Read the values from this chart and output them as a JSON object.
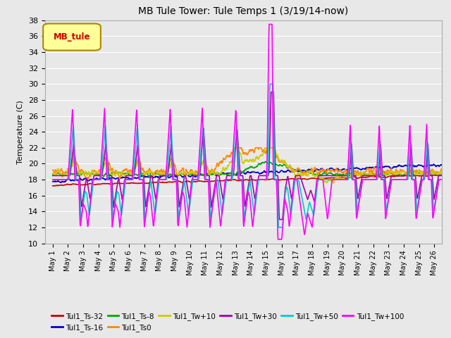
{
  "title": "MB Tule Tower: Tule Temps 1 (3/19/14-now)",
  "ylabel": "Temperature (C)",
  "ylim": [
    10,
    38
  ],
  "yticks": [
    10,
    12,
    14,
    16,
    18,
    20,
    22,
    24,
    26,
    28,
    30,
    32,
    34,
    36,
    38
  ],
  "background_color": "#e8e8e8",
  "series": {
    "Tul1_Ts-32": {
      "color": "#cc0000",
      "lw": 1.2
    },
    "Tul1_Ts-16": {
      "color": "#0000cc",
      "lw": 1.2
    },
    "Tul1_Ts-8": {
      "color": "#00aa00",
      "lw": 1.2
    },
    "Tul1_Ts0": {
      "color": "#ff8800",
      "lw": 1.2
    },
    "Tul1_Tw+10": {
      "color": "#cccc00",
      "lw": 1.2
    },
    "Tul1_Tw+30": {
      "color": "#aa00aa",
      "lw": 1.2
    },
    "Tul1_Tw+50": {
      "color": "#00cccc",
      "lw": 1.2
    },
    "Tul1_Tw+100": {
      "color": "#ff00ff",
      "lw": 1.2
    }
  },
  "legend_box": {
    "label": "MB_tule",
    "facecolor": "#ffff99",
    "edgecolor": "#aa8800",
    "textcolor": "#cc0000"
  },
  "xlim": [
    0.5,
    26.5
  ],
  "legend_ncol": 6
}
